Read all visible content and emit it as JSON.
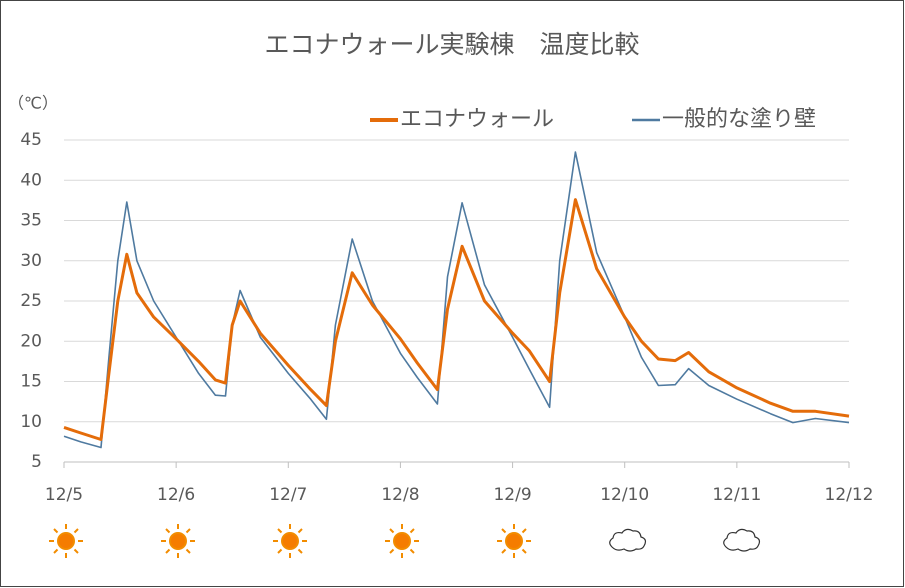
{
  "chart_data": {
    "type": "line",
    "title": "エコナウォール実験棟　温度比較",
    "y_label": "（℃）",
    "x": [
      0,
      0.15,
      0.33,
      0.4,
      0.48,
      0.56,
      0.65,
      0.8,
      1.0,
      1.2,
      1.35,
      1.44,
      1.5,
      1.57,
      1.75,
      2.0,
      2.2,
      2.34,
      2.42,
      2.57,
      2.75,
      3.0,
      3.15,
      3.33,
      3.42,
      3.55,
      3.75,
      4.0,
      4.15,
      4.33,
      4.42,
      4.56,
      4.75,
      5.0,
      5.15,
      5.3,
      5.45,
      5.57,
      5.75,
      6.0,
      6.3,
      6.5,
      6.7,
      7.0
    ],
    "series": [
      {
        "name": "エコナウォール",
        "color": "#e46c0a",
        "width": 3,
        "values": [
          9.3,
          8.6,
          7.8,
          16,
          25,
          30.8,
          26,
          23,
          20.3,
          17.5,
          15.2,
          14.8,
          22,
          25,
          21,
          17,
          14,
          12,
          20,
          28.5,
          24.5,
          20.3,
          17.3,
          14,
          24,
          31.8,
          25,
          21,
          18.8,
          15,
          26,
          37.6,
          29,
          23,
          20,
          17.8,
          17.6,
          18.6,
          16.2,
          14.2,
          12.3,
          11.3,
          11.3,
          10.7
        ]
      },
      {
        "name": "一般的な塗り壁",
        "color": "#4f7aa0",
        "width": 1.6,
        "values": [
          8.2,
          7.5,
          6.8,
          18,
          30,
          37.3,
          30,
          25,
          20.5,
          16,
          13.3,
          13.2,
          22,
          26.3,
          20.5,
          16,
          12.8,
          10.3,
          22,
          32.7,
          25,
          18.5,
          15.5,
          12.2,
          28,
          37.2,
          27,
          20.5,
          16.5,
          11.8,
          30,
          43.5,
          31,
          23,
          18,
          14.5,
          14.6,
          16.6,
          14.5,
          12.8,
          11,
          9.9,
          10.4,
          9.9
        ]
      }
    ],
    "xlim": [
      0,
      7
    ],
    "xticks": [
      {
        "value": 0,
        "label": "12/5"
      },
      {
        "value": 1,
        "label": "12/6"
      },
      {
        "value": 2,
        "label": "12/7"
      },
      {
        "value": 3,
        "label": "12/8"
      },
      {
        "value": 4,
        "label": "12/9"
      },
      {
        "value": 5,
        "label": "12/10"
      },
      {
        "value": 6,
        "label": "12/11"
      },
      {
        "value": 7,
        "label": "12/12"
      }
    ],
    "ylim": [
      5,
      45
    ],
    "yticks": [
      5,
      10,
      15,
      20,
      25,
      30,
      35,
      40,
      45
    ],
    "grid": true
  }
}
